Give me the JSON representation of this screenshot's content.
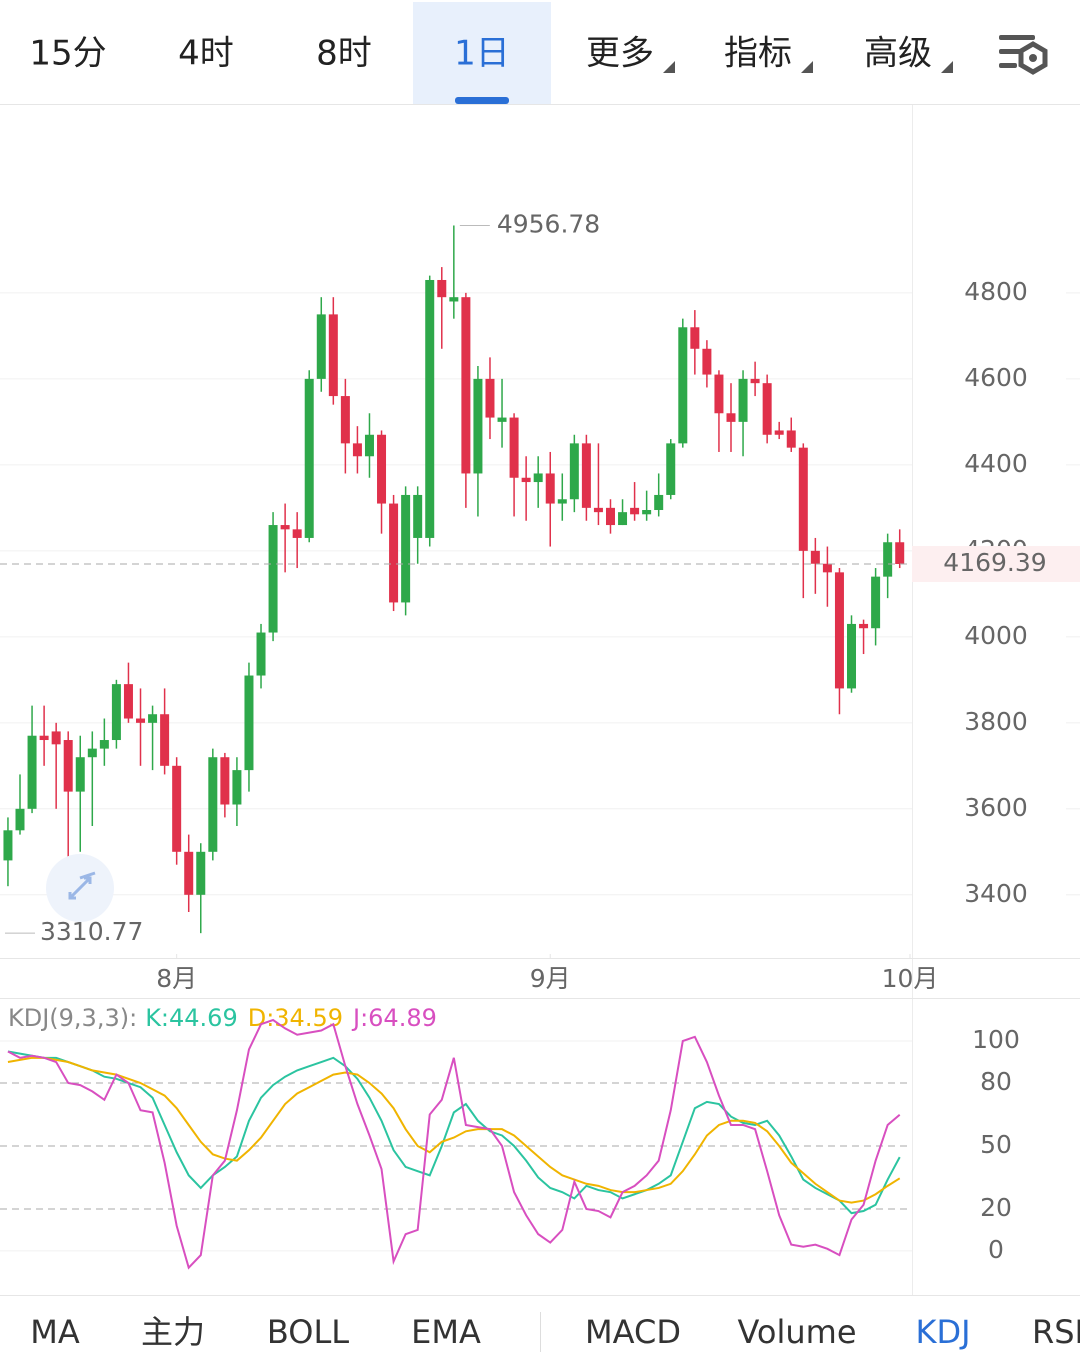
{
  "tabs": {
    "items": [
      "15分",
      "4时",
      "8时",
      "1日",
      "更多",
      "指标",
      "高级"
    ],
    "active": 3
  },
  "chart_data": [
    {
      "type": "candlestick",
      "open": [
        3480,
        3550,
        3600,
        3770,
        3780,
        3760,
        3640,
        3720,
        3740,
        3760,
        3890,
        3810,
        3800,
        3820,
        3700,
        3500,
        3400,
        3500,
        3720,
        3610,
        3690,
        3910,
        4010,
        4260,
        4250,
        4230,
        4600,
        4750,
        4560,
        4450,
        4420,
        4470,
        4310,
        4080,
        4230,
        4230,
        4830,
        4780,
        4790,
        4380,
        4600,
        4500,
        4510,
        4370,
        4360,
        4380,
        4310,
        4320,
        4450,
        4300,
        4300,
        4260,
        4300,
        4285,
        4295,
        4330,
        4450,
        4720,
        4670,
        4610,
        4520,
        4500,
        4600,
        4590,
        4480,
        4480,
        4440,
        4200,
        4170,
        4150,
        3880,
        4030,
        4020,
        4140,
        4220
      ],
      "high": [
        3580,
        3680,
        3840,
        3840,
        3800,
        3780,
        3770,
        3780,
        3810,
        3900,
        3940,
        3880,
        3840,
        3880,
        3720,
        3540,
        3520,
        3740,
        3730,
        3720,
        3940,
        4030,
        4290,
        4310,
        4290,
        4620,
        4790,
        4790,
        4600,
        4490,
        4520,
        4480,
        4330,
        4350,
        4350,
        4840,
        4860,
        4956.78,
        4800,
        4630,
        4650,
        4600,
        4520,
        4420,
        4420,
        4430,
        4380,
        4470,
        4470,
        4450,
        4320,
        4320,
        4360,
        4340,
        4380,
        4460,
        4740,
        4760,
        4690,
        4620,
        4590,
        4620,
        4640,
        4610,
        4500,
        4510,
        4450,
        4230,
        4210,
        4160,
        4050,
        4040,
        4160,
        4240,
        4250
      ],
      "low": [
        3420,
        3540,
        3590,
        3700,
        3600,
        3480,
        3500,
        3560,
        3700,
        3740,
        3800,
        3700,
        3690,
        3680,
        3470,
        3360,
        3310.77,
        3480,
        3580,
        3560,
        3640,
        3880,
        3990,
        4150,
        4160,
        4220,
        4570,
        4540,
        4380,
        4380,
        4370,
        4240,
        4060,
        4050,
        4170,
        4210,
        4670,
        4740,
        4300,
        4280,
        4460,
        4440,
        4280,
        4270,
        4300,
        4210,
        4270,
        4290,
        4270,
        4260,
        4240,
        4260,
        4270,
        4270,
        4280,
        4320,
        4440,
        4610,
        4580,
        4430,
        4430,
        4420,
        4560,
        4450,
        4460,
        4430,
        4090,
        4100,
        4070,
        3820,
        3870,
        3960,
        3980,
        4090,
        4160
      ],
      "close": [
        3550,
        3600,
        3770,
        3760,
        3750,
        3640,
        3720,
        3740,
        3760,
        3890,
        3810,
        3800,
        3820,
        3700,
        3500,
        3400,
        3500,
        3720,
        3610,
        3690,
        3910,
        4010,
        4260,
        4250,
        4230,
        4600,
        4750,
        4560,
        4450,
        4420,
        4470,
        4310,
        4080,
        4330,
        4330,
        4830,
        4790,
        4790,
        4380,
        4600,
        4510,
        4510,
        4370,
        4360,
        4380,
        4310,
        4320,
        4450,
        4300,
        4290,
        4260,
        4290,
        4285,
        4295,
        4330,
        4450,
        4720,
        4670,
        4610,
        4520,
        4500,
        4600,
        4590,
        4470,
        4470,
        4440,
        4200,
        4170,
        4150,
        3880,
        4030,
        4020,
        4140,
        4220,
        4169.39
      ],
      "up_color": "#2ea84a",
      "down_color": "#e0314b",
      "ylim": [
        3253,
        5237
      ],
      "yticks": [
        3400,
        3600,
        3800,
        4000,
        4200,
        4400,
        4600,
        4800
      ],
      "xlim": [
        -0.66,
        75.02
      ],
      "xticks": [
        {
          "value": 14,
          "label": "8月"
        },
        {
          "value": 45,
          "label": "9月"
        },
        {
          "value": 75,
          "label": "10月"
        }
      ],
      "grid": true
    },
    {
      "type": "line",
      "title": "KDJ(9,3,3):",
      "ylim": [
        -21,
        120.5
      ],
      "yticks": [
        0,
        20,
        50,
        80,
        100
      ],
      "xlim": [
        -0.66,
        75.02
      ],
      "series": [
        {
          "name": "K:44.69",
          "color": "#2bc4a0",
          "values": [
            95,
            94,
            93,
            92,
            92,
            90,
            88,
            86,
            83,
            82,
            80,
            78,
            73,
            60,
            47,
            36,
            30,
            36,
            40,
            45,
            62,
            73,
            79,
            83,
            86,
            88,
            90,
            92,
            88,
            82,
            73,
            62,
            48,
            40,
            38,
            36,
            50,
            66,
            70,
            62,
            57,
            55,
            50,
            43,
            35,
            30,
            28,
            25,
            31,
            29,
            28,
            25,
            27,
            29,
            32,
            36,
            52,
            68,
            71,
            70,
            64,
            61,
            60,
            62,
            55,
            45,
            34,
            30,
            27,
            24,
            18,
            19,
            22,
            34,
            44.69
          ]
        },
        {
          "name": "D:34.59",
          "color": "#f0b400",
          "values": [
            90,
            91,
            92,
            92,
            91,
            90,
            88,
            86,
            85,
            84,
            82,
            80,
            77,
            74,
            68,
            60,
            52,
            46,
            44,
            43,
            48,
            54,
            62,
            70,
            75,
            78,
            81,
            84,
            85,
            84,
            80,
            75,
            68,
            58,
            50,
            47,
            52,
            54,
            57,
            58,
            58,
            58,
            55,
            50,
            45,
            40,
            36,
            34,
            32,
            31,
            29,
            28,
            28,
            29,
            30,
            32,
            38,
            46,
            55,
            60,
            62,
            62,
            61,
            57,
            50,
            42,
            37,
            32,
            28,
            24,
            23,
            24,
            27,
            31,
            34.59
          ]
        },
        {
          "name": "J:64.89",
          "color": "#d84fc0",
          "values": [
            95,
            92,
            93,
            92,
            90,
            80,
            79,
            76,
            72,
            84,
            80,
            67,
            66,
            42,
            12,
            -8,
            -2,
            36,
            43,
            67,
            96,
            108,
            110,
            106,
            103,
            104,
            105,
            108,
            88,
            70,
            55,
            39,
            -5,
            8,
            10,
            65,
            72,
            92,
            60,
            59,
            58,
            50,
            28,
            17,
            8,
            4,
            10,
            33,
            20,
            19,
            16,
            28,
            31,
            36,
            43,
            67,
            100,
            102,
            90,
            74,
            60,
            60,
            58,
            38,
            17,
            3,
            2,
            3,
            1,
            -2,
            15,
            22,
            43,
            60,
            64.89
          ]
        }
      ]
    }
  ],
  "indicators": {
    "items": [
      "MA",
      "主力",
      "BOLL",
      "EMA",
      "MACD",
      "Volume",
      "KDJ",
      "RSI"
    ],
    "active": 6
  }
}
